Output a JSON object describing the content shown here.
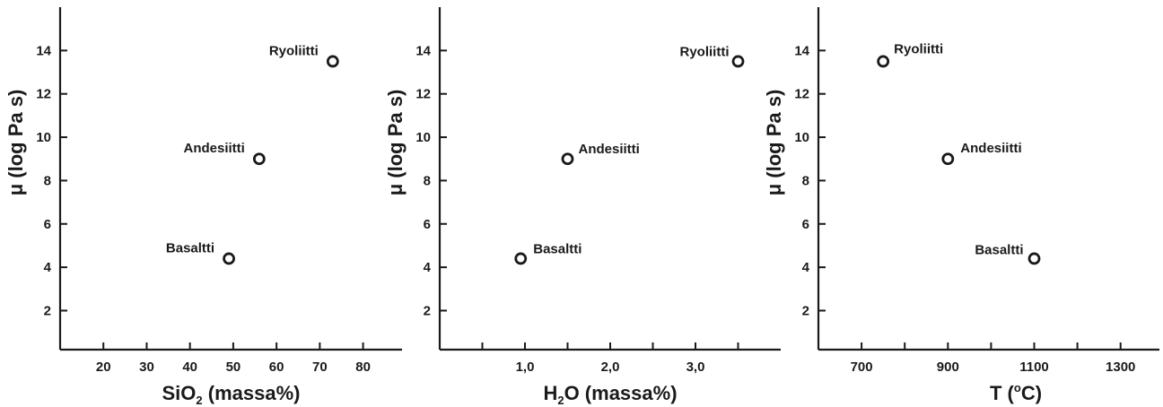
{
  "chart_data": [
    {
      "type": "scatter",
      "title": "",
      "xlabel": "SiO2 (massa%)",
      "xlabel_main": "SiO",
      "xlabel_sub": "2",
      "xlabel_rest": " (massa%)",
      "ylabel": "μ (log Pa s)",
      "xlim": [
        10,
        89
      ],
      "ylim": [
        0.2,
        16
      ],
      "xticks": [
        20,
        30,
        40,
        50,
        60,
        70,
        80
      ],
      "xtick_labels": [
        "20",
        "30",
        "40",
        "50",
        "60",
        "70",
        "80"
      ],
      "yticks": [
        2,
        4,
        6,
        8,
        10,
        12,
        14
      ],
      "ytick_labels": [
        "2",
        "4",
        "6",
        "8",
        "10",
        "12",
        "14"
      ],
      "points": [
        {
          "label": "Basaltti",
          "x": 49,
          "y": 4.4
        },
        {
          "label": "Andesiitti",
          "x": 56,
          "y": 9.0
        },
        {
          "label": "Ryoliitti",
          "x": 73,
          "y": 13.5
        }
      ]
    },
    {
      "type": "scatter",
      "title": "",
      "xlabel": "H2O (massa%)",
      "xlabel_main": "H",
      "xlabel_sub": "2",
      "xlabel_rest": "O (massa%)",
      "ylabel": "μ (log Pa s)",
      "xlim": [
        0,
        4.0
      ],
      "ylim": [
        0.2,
        16
      ],
      "xticks": [
        0.5,
        1.0,
        1.5,
        2.0,
        2.5,
        3.0,
        3.5
      ],
      "xtick_labels": [
        "",
        "1,0",
        "",
        "2,0",
        "",
        "3,0",
        ""
      ],
      "yticks": [
        2,
        4,
        6,
        8,
        10,
        12,
        14
      ],
      "ytick_labels": [
        "2",
        "4",
        "6",
        "8",
        "10",
        "12",
        "14"
      ],
      "points": [
        {
          "label": "Basaltti",
          "x": 0.95,
          "y": 4.4
        },
        {
          "label": "Andesiitti",
          "x": 1.5,
          "y": 9.0
        },
        {
          "label": "Ryoliitti",
          "x": 3.5,
          "y": 13.5
        }
      ]
    },
    {
      "type": "scatter",
      "title": "",
      "xlabel": "T (oC)",
      "xlabel_main": "T (",
      "xlabel_sup": "o",
      "xlabel_rest": "C)",
      "ylabel": "μ (log Pa s)",
      "xlim": [
        600,
        1390
      ],
      "ylim": [
        0.2,
        16
      ],
      "xticks": [
        700,
        800,
        900,
        1000,
        1100,
        1200,
        1300
      ],
      "xtick_labels": [
        "700",
        "",
        "900",
        "",
        "1100",
        "",
        "1300"
      ],
      "yticks": [
        2,
        4,
        6,
        8,
        10,
        12,
        14
      ],
      "ytick_labels": [
        "2",
        "4",
        "6",
        "8",
        "10",
        "12",
        "14"
      ],
      "points": [
        {
          "label": "Basaltti",
          "x": 1100,
          "y": 4.4
        },
        {
          "label": "Andesiitti",
          "x": 900,
          "y": 9.0
        },
        {
          "label": "Ryoliitti",
          "x": 750,
          "y": 13.5
        }
      ]
    }
  ],
  "colors": {
    "axis": "#1a1a1a",
    "marker": "#1a1a1a",
    "background": "#ffffff"
  }
}
